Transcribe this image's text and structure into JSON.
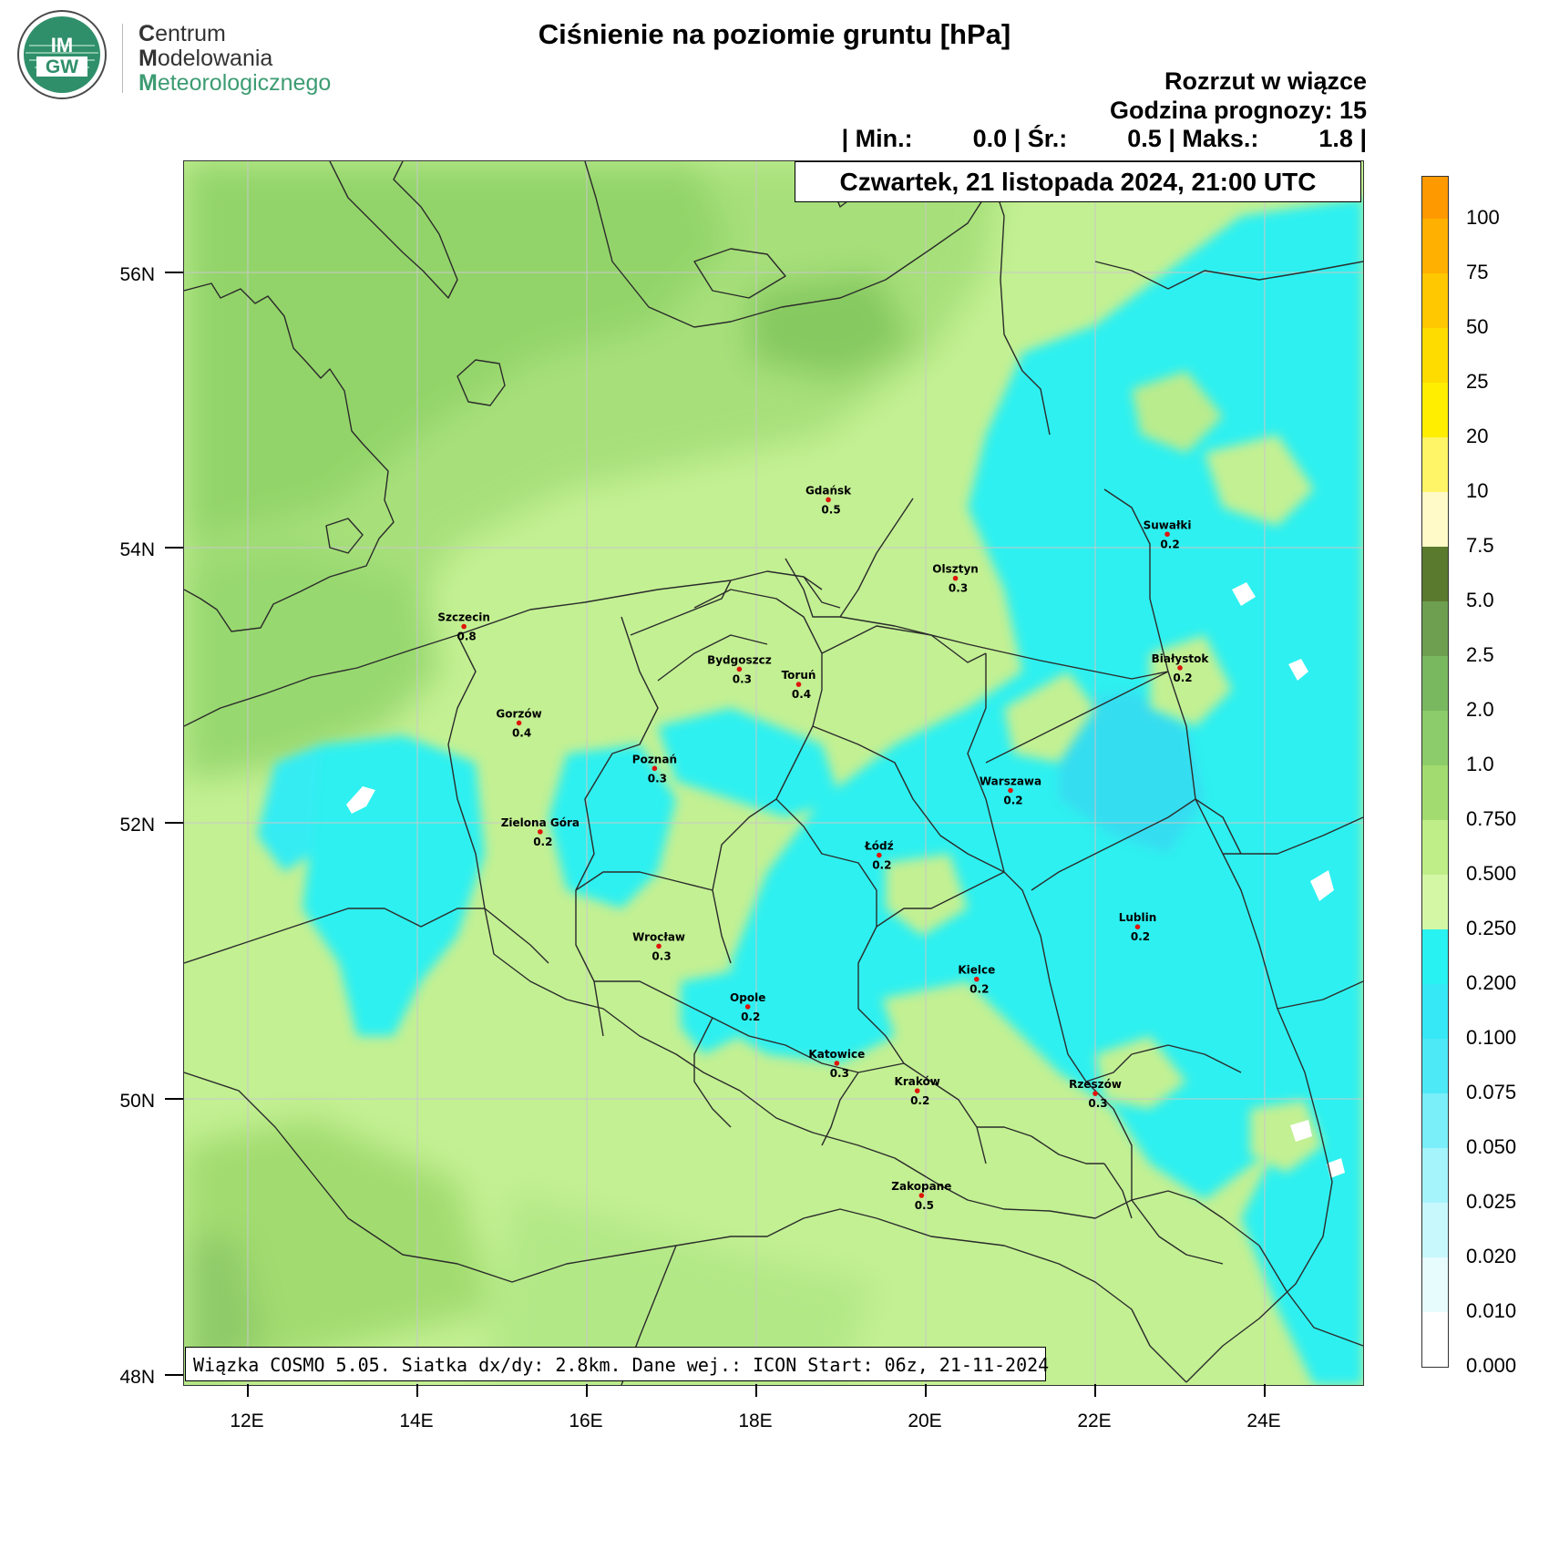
{
  "organization": {
    "logo_text_top": "IM",
    "logo_text_bottom": "GW",
    "line1": "Centrum",
    "line2": "Modelowania",
    "line3": "Meteorologicznego"
  },
  "title": "Ciśnienie na poziomie gruntu [hPa]",
  "subtitle": "Rozrzut w wiązce",
  "forecast_hour": "Godzina prognozy: 15",
  "stats": {
    "min_label": "| Min.:",
    "min_value": "0.0",
    "mean_label": "| Śr.:",
    "mean_value": "0.5",
    "max_label": "| Maks.:",
    "max_value": "1.8",
    "end": "|"
  },
  "valid_time": "Czwartek, 21 listopada 2024, 21:00 UTC",
  "footer": "Wiązka COSMO 5.05. Siatka dx/dy: 2.8km. Dane wej.: ICON Start: 06z, 21-11-2024",
  "latitude_labels": [
    "56N",
    "54N",
    "52N",
    "50N",
    "48N"
  ],
  "longitude_labels": [
    "12E",
    "14E",
    "16E",
    "18E",
    "20E",
    "22E",
    "24E"
  ],
  "colorbar": {
    "labels": [
      "100",
      "75",
      "50",
      "25",
      "20",
      "10",
      "7.5",
      "5.0",
      "2.5",
      "2.0",
      "1.0",
      "0.750",
      "0.500",
      "0.250",
      "0.200",
      "0.100",
      "0.075",
      "0.050",
      "0.025",
      "0.020",
      "0.010",
      "0.000"
    ],
    "colors": [
      "#ff9900",
      "#ffb000",
      "#ffc800",
      "#ffdc00",
      "#ffee00",
      "#fff566",
      "#fffac8",
      "#5a7a2e",
      "#6e9e50",
      "#7ab860",
      "#8ccc6a",
      "#a2dc70",
      "#bfee88",
      "#d4f7a6",
      "#29f2f2",
      "#36e8f5",
      "#4de9f7",
      "#7aeff9",
      "#a6f4fb",
      "#c9f8fc",
      "#e7fcfd",
      "#ffffff"
    ]
  },
  "cities": [
    {
      "name": "Gdańsk",
      "value": "0.5",
      "lon": 18.85,
      "lat": 54.35
    },
    {
      "name": "Suwałki",
      "value": "0.2",
      "lon": 22.85,
      "lat": 54.1
    },
    {
      "name": "Olsztyn",
      "value": "0.3",
      "lon": 20.35,
      "lat": 53.78
    },
    {
      "name": "Szczecin",
      "value": "0.8",
      "lon": 14.55,
      "lat": 53.43
    },
    {
      "name": "Bydgoszcz",
      "value": "0.3",
      "lon": 17.8,
      "lat": 53.12
    },
    {
      "name": "Toruń",
      "value": "0.4",
      "lon": 18.5,
      "lat": 53.01
    },
    {
      "name": "Białystok",
      "value": "0.2",
      "lon": 23.0,
      "lat": 53.13
    },
    {
      "name": "Gorzów",
      "value": "0.4",
      "lon": 15.2,
      "lat": 52.73
    },
    {
      "name": "Poznań",
      "value": "0.3",
      "lon": 16.8,
      "lat": 52.4
    },
    {
      "name": "Warszawa",
      "value": "0.2",
      "lon": 21.0,
      "lat": 52.24
    },
    {
      "name": "Zielona Góra",
      "value": "0.2",
      "lon": 15.45,
      "lat": 51.94
    },
    {
      "name": "Łódź",
      "value": "0.2",
      "lon": 19.45,
      "lat": 51.77
    },
    {
      "name": "Lublin",
      "value": "0.2",
      "lon": 22.5,
      "lat": 51.25
    },
    {
      "name": "Wrocław",
      "value": "0.3",
      "lon": 16.85,
      "lat": 51.11
    },
    {
      "name": "Kielce",
      "value": "0.2",
      "lon": 20.6,
      "lat": 50.87
    },
    {
      "name": "Opole",
      "value": "0.2",
      "lon": 17.9,
      "lat": 50.67
    },
    {
      "name": "Katowice",
      "value": "0.3",
      "lon": 18.95,
      "lat": 50.26
    },
    {
      "name": "Kraków",
      "value": "0.2",
      "lon": 19.9,
      "lat": 50.06
    },
    {
      "name": "Rzeszów",
      "value": "0.3",
      "lon": 22.0,
      "lat": 50.04
    },
    {
      "name": "Zakopane",
      "value": "0.5",
      "lon": 19.95,
      "lat": 49.3
    }
  ]
}
